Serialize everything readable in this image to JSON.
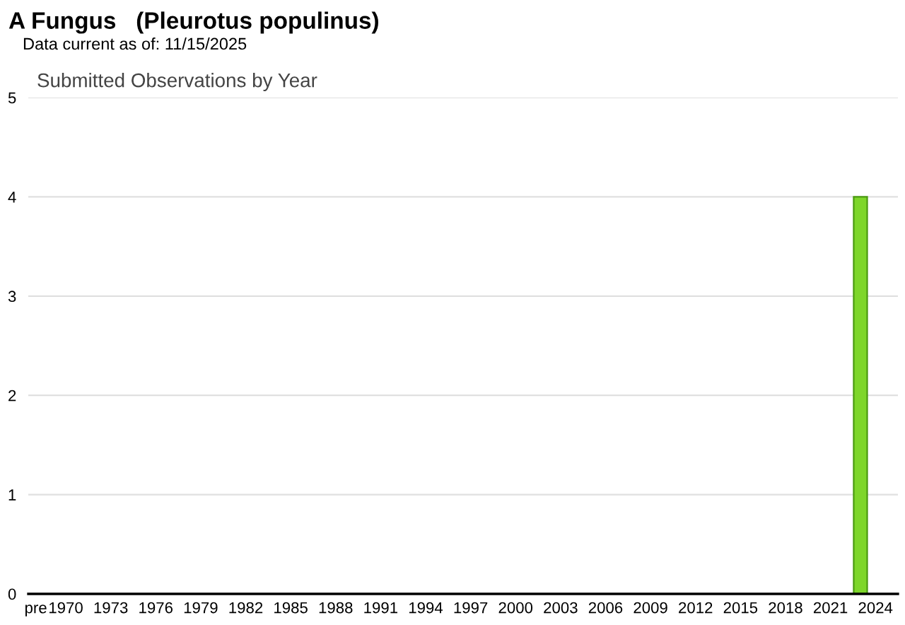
{
  "chart_data": {
    "type": "bar",
    "title": "A Fungus   (Pleurotus populinus)",
    "subtitle": "Data current as of: 11/15/2025",
    "annotations": [
      "Submitted Observations by Year"
    ],
    "categories": [
      "pre",
      null,
      "1970",
      null,
      null,
      "1973",
      null,
      null,
      "1976",
      null,
      null,
      "1979",
      null,
      null,
      "1982",
      null,
      null,
      "1985",
      null,
      null,
      "1988",
      null,
      null,
      "1991",
      null,
      null,
      "1994",
      null,
      null,
      "1997",
      null,
      null,
      "2000",
      null,
      null,
      "2003",
      null,
      null,
      "2006",
      null,
      null,
      "2009",
      null,
      null,
      "2012",
      null,
      null,
      "2015",
      null,
      null,
      "2018",
      null,
      null,
      "2021",
      null,
      null,
      "2024",
      null
    ],
    "values": [
      0,
      0,
      0,
      0,
      0,
      0,
      0,
      0,
      0,
      0,
      0,
      0,
      0,
      0,
      0,
      0,
      0,
      0,
      0,
      0,
      0,
      0,
      0,
      0,
      0,
      0,
      0,
      0,
      0,
      0,
      0,
      0,
      0,
      0,
      0,
      0,
      0,
      0,
      0,
      0,
      0,
      0,
      0,
      0,
      0,
      0,
      0,
      0,
      0,
      0,
      0,
      0,
      0,
      0,
      0,
      4,
      0,
      0
    ],
    "color": "#7ed62a",
    "ylim": [
      0,
      5
    ],
    "yticks": [
      0,
      1,
      2,
      3,
      4,
      5
    ],
    "grid": "y",
    "legend": false
  }
}
